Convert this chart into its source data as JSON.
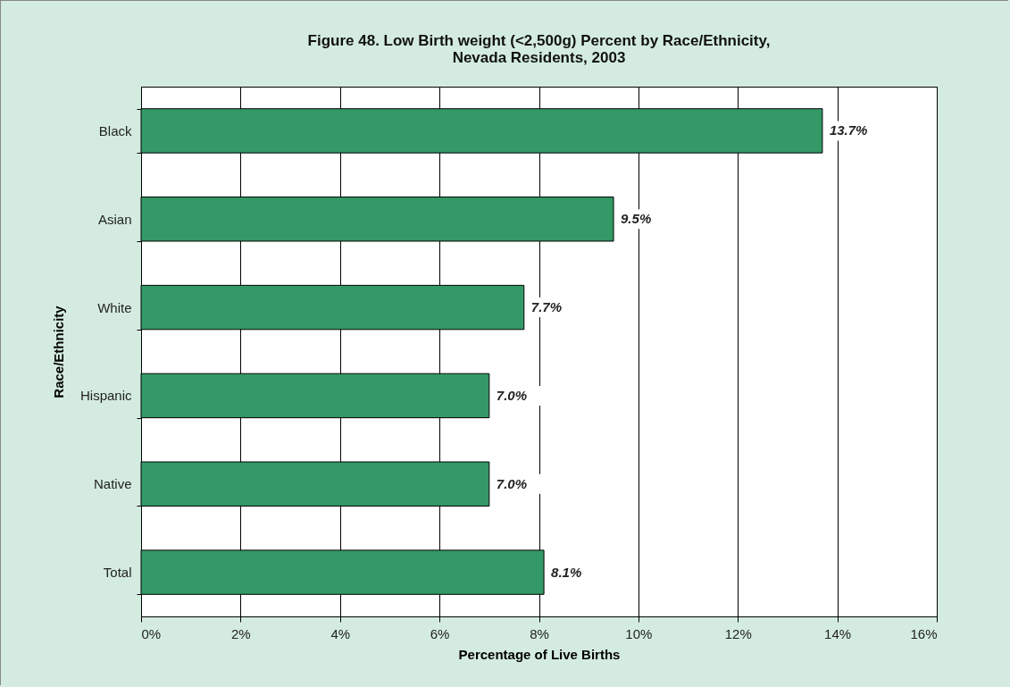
{
  "chart_data": {
    "type": "bar",
    "orientation": "horizontal",
    "title": "Figure 48. Low Birth weight (<2,500g) Percent by Race/Ethnicity,\nNevada Residents, 2003",
    "xlabel": "Percentage of Live Births",
    "ylabel": "Race/Ethnicity",
    "categories": [
      "Black",
      "Asian",
      "White",
      "Hispanic",
      "Native",
      "Total"
    ],
    "values": [
      13.7,
      9.5,
      7.7,
      7.0,
      7.0,
      8.1
    ],
    "value_labels": [
      "13.7%",
      "9.5%",
      "7.7%",
      "7.0%",
      "7.0%",
      "8.1%"
    ],
    "color": "#339966",
    "xlim": [
      0,
      16
    ],
    "xticks": [
      {
        "value": 0,
        "label": "0%"
      },
      {
        "value": 2,
        "label": "2%"
      },
      {
        "value": 4,
        "label": "4%"
      },
      {
        "value": 6,
        "label": "6%"
      },
      {
        "value": 8,
        "label": "8%"
      },
      {
        "value": 10,
        "label": "10%"
      },
      {
        "value": 12,
        "label": "12%"
      },
      {
        "value": 14,
        "label": "14%"
      },
      {
        "value": 16,
        "label": "16%"
      }
    ],
    "grid": "x"
  }
}
